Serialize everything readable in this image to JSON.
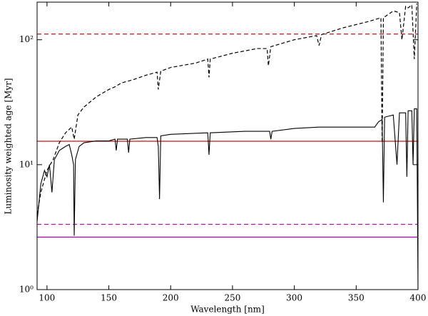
{
  "chart_data": {
    "type": "line",
    "x_label": "Wavelength [nm]",
    "y_label": "Luminosity weighted age [Myr]",
    "log_y": true,
    "xlim": [
      92,
      400
    ],
    "ylim": [
      1,
      200
    ],
    "xticks": [
      100,
      150,
      200,
      250,
      300,
      350,
      400
    ],
    "yticks": [
      {
        "value": 1,
        "label": "10⁰"
      },
      {
        "value": 10,
        "label": "10¹"
      },
      {
        "value": 100,
        "label": "10²"
      }
    ],
    "hlines": [
      {
        "value": 111,
        "color": "#cc1111",
        "dash": true
      },
      {
        "value": 15.4,
        "color": "#cc1111",
        "dash": false
      },
      {
        "value": 3.33,
        "color": "#b010b0",
        "dash": true
      },
      {
        "value": 2.63,
        "color": "#b010b0",
        "dash": false
      }
    ],
    "series": [
      {
        "color": "#000000",
        "dash": false,
        "x": [
          92,
          95,
          98,
          100,
          102,
          104,
          106,
          110,
          115,
          118,
          120,
          121.5,
          122,
          123,
          126,
          130,
          140,
          150,
          155,
          156,
          157,
          165,
          166,
          167,
          180,
          189,
          190,
          191,
          192,
          200,
          230,
          231,
          232,
          260,
          280,
          281,
          282,
          300,
          320,
          330,
          365,
          368,
          371,
          372,
          373,
          380,
          383,
          385,
          390,
          391,
          392,
          395,
          396,
          397,
          399,
          400
        ],
        "values": [
          3.5,
          7,
          9,
          8,
          10,
          6,
          11,
          13,
          14,
          14.5,
          12,
          10,
          2.7,
          11,
          14,
          15,
          15.5,
          15.5,
          16,
          13,
          16,
          16,
          12.5,
          16,
          16.5,
          16.5,
          14,
          5.3,
          17,
          17.5,
          18,
          12,
          18,
          18.5,
          18.5,
          16,
          18.5,
          19.5,
          20,
          20,
          20,
          22,
          23,
          5,
          24,
          25,
          10,
          26,
          26,
          8,
          27,
          27,
          10,
          28,
          28,
          1
        ]
      },
      {
        "color": "#000000",
        "dash": true,
        "x": [
          92,
          95,
          100,
          105,
          110,
          115,
          120,
          122,
          125,
          130,
          140,
          150,
          155,
          160,
          170,
          180,
          189,
          190,
          192,
          200,
          220,
          230,
          231,
          232,
          250,
          270,
          278,
          279,
          281,
          300,
          318,
          320,
          322,
          340,
          360,
          370,
          371,
          372,
          380,
          385,
          387,
          390,
          392,
          395,
          397,
          399
        ],
        "values": [
          4,
          6,
          9,
          11,
          15,
          18,
          20,
          16,
          25,
          29,
          35,
          40,
          42,
          45,
          48,
          52,
          55,
          40,
          56,
          60,
          65,
          70,
          50,
          70,
          78,
          85,
          85,
          62,
          88,
          100,
          108,
          90,
          110,
          125,
          140,
          150,
          15,
          150,
          170,
          165,
          100,
          185,
          180,
          190,
          70,
          195
        ]
      }
    ]
  }
}
